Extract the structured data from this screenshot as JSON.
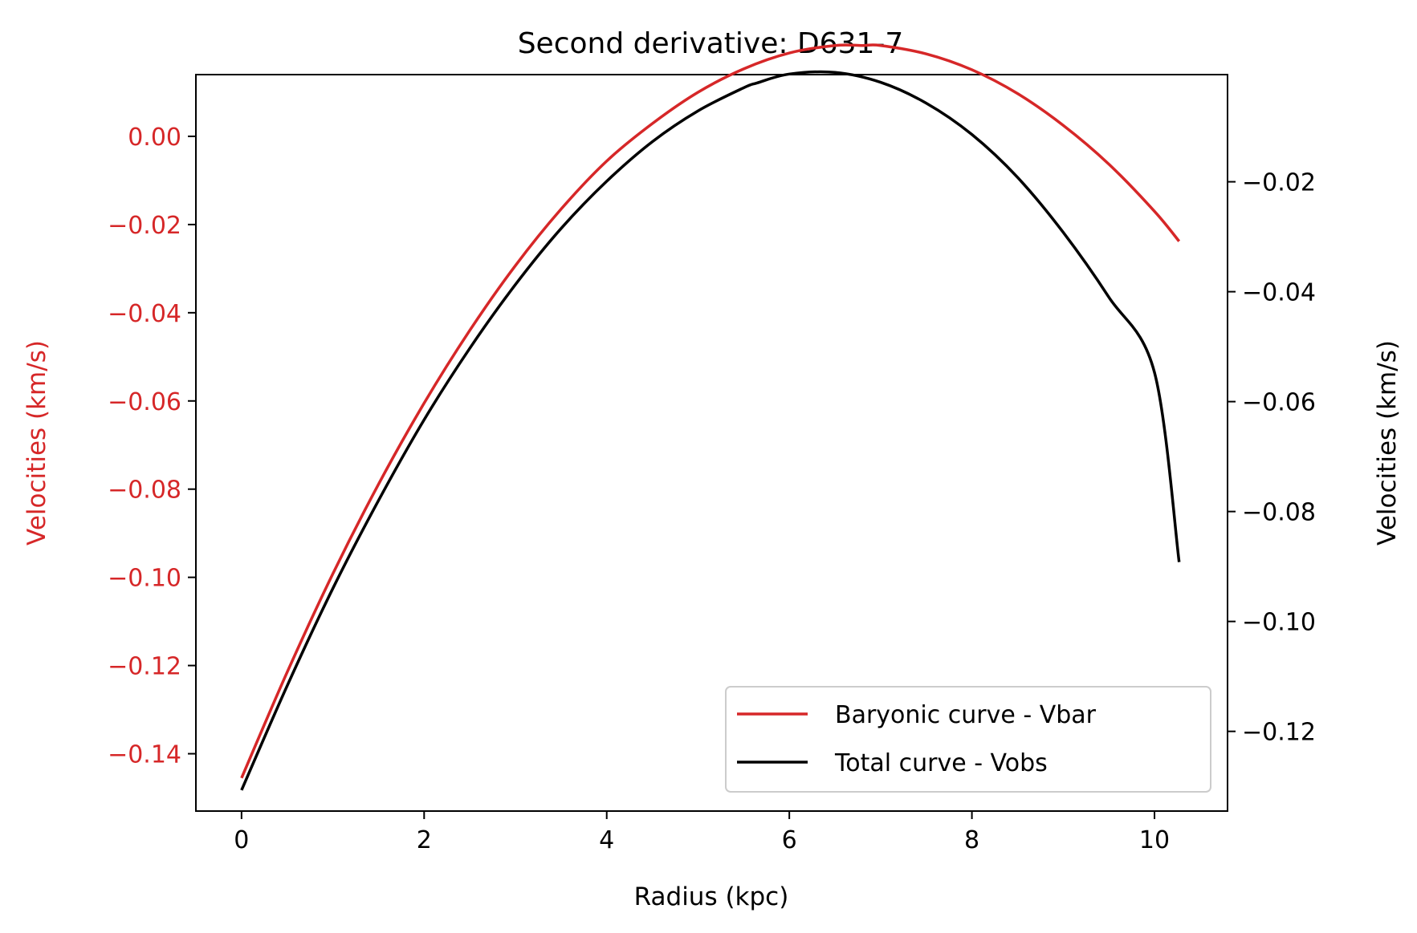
{
  "chart_data": {
    "type": "line",
    "title": "Second derivative: D631-7",
    "xlabel": "Radius (kpc)",
    "ylabel_left": "Velocities (km/s)",
    "ylabel_right": "Velocities (km/s)",
    "xlim": [
      -0.5,
      10.8
    ],
    "ylim_left": [
      -0.153,
      0.014
    ],
    "ylim_right": [
      -0.1345,
      -0.0005
    ],
    "x_ticks": [
      0,
      2,
      4,
      6,
      8,
      10
    ],
    "x_tick_labels": [
      "0",
      "2",
      "4",
      "6",
      "8",
      "10"
    ],
    "y_left_ticks": [
      0.0,
      -0.02,
      -0.04,
      -0.06,
      -0.08,
      -0.1,
      -0.12,
      -0.14
    ],
    "y_left_tick_labels": [
      "0.00",
      "−0.02",
      "−0.04",
      "−0.06",
      "−0.08",
      "−0.10",
      "−0.12",
      "−0.14"
    ],
    "y_right_ticks": [
      -0.02,
      -0.04,
      -0.06,
      -0.08,
      -0.1,
      -0.12
    ],
    "y_right_tick_labels": [
      "−0.02",
      "−0.04",
      "−0.06",
      "−0.08",
      "−0.10",
      "−0.12"
    ],
    "grid": false,
    "legend_position": "bottom-right",
    "series": [
      {
        "name": "Baryonic curve - Vbar",
        "axis": "left",
        "color": "#d62728",
        "x": [
          0,
          0.5,
          1,
          1.5,
          2,
          2.5,
          3,
          3.5,
          4,
          4.5,
          5,
          5.5,
          6,
          6.5,
          6.8,
          7,
          7.5,
          8,
          8.5,
          9,
          9.5,
          10,
          10.27
        ],
        "y": [
          -0.1455,
          -0.1215,
          -0.0992,
          -0.0789,
          -0.0605,
          -0.044,
          -0.0293,
          -0.0165,
          -0.0056,
          0.0029,
          0.01,
          0.0153,
          0.0189,
          0.0206,
          0.0206,
          0.0206,
          0.0187,
          0.0151,
          0.0097,
          0.0025,
          -0.0063,
          -0.017,
          -0.0238
        ]
      },
      {
        "name": "Total curve - Vobs",
        "axis": "right",
        "color": "#000000",
        "x": [
          0,
          0.5,
          1,
          1.5,
          2,
          2.5,
          3,
          3.5,
          4,
          4.5,
          5,
          5.5,
          5.65,
          6,
          6.5,
          7,
          7.5,
          8,
          8.5,
          9,
          9.5,
          10,
          10.27
        ],
        "y": [
          -0.1307,
          -0.1117,
          -0.094,
          -0.078,
          -0.0633,
          -0.0503,
          -0.0387,
          -0.0285,
          -0.0199,
          -0.0127,
          -0.0071,
          -0.0029,
          -0.002,
          -0.0004,
          -0.0001,
          -0.0019,
          -0.0057,
          -0.0114,
          -0.0192,
          -0.0292,
          -0.041,
          -0.0547,
          -0.0892
        ]
      }
    ]
  }
}
